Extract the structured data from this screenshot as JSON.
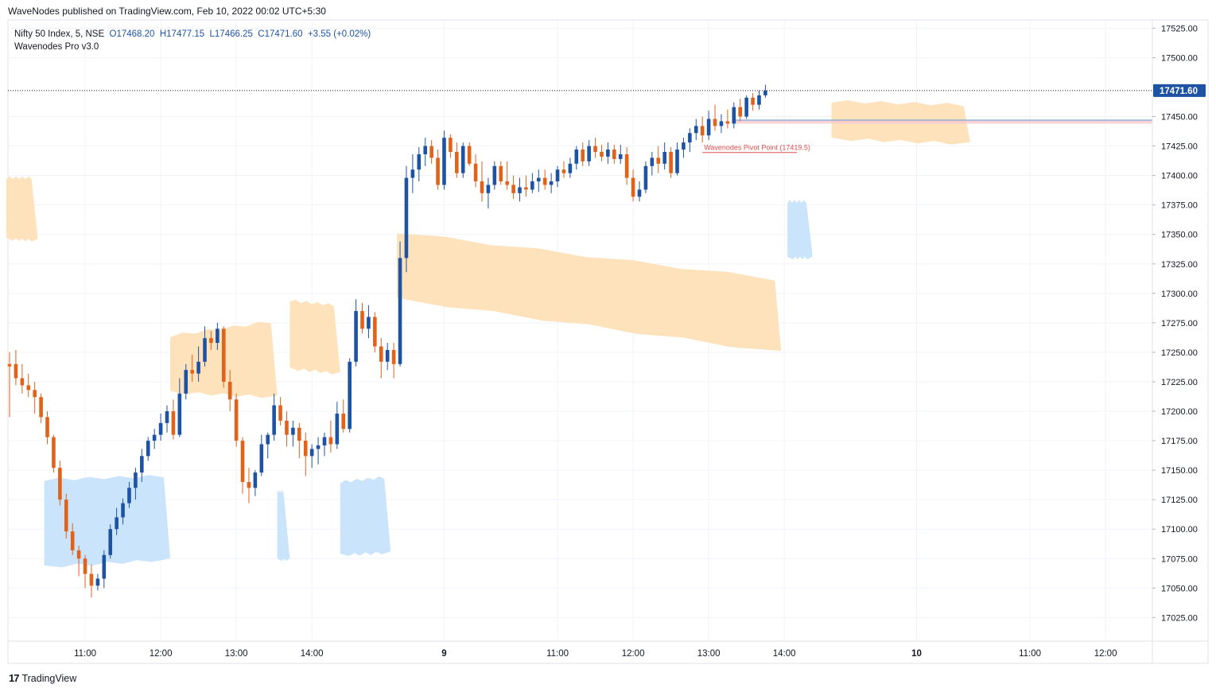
{
  "header": {
    "published": "WaveNodes published on TradingView.com, Feb 10, 2022 00:02 UTC+5:30"
  },
  "legend": {
    "symbol": "Nifty 50 Index, 5, NSE",
    "open": "O17468.20",
    "high": "H17477.15",
    "low": "L17466.25",
    "close": "C17471.60",
    "change": "+3.55 (+0.02%)",
    "indicator": "Wavenodes Pro v3.0"
  },
  "footer": {
    "logo_text": "TradingView",
    "logo_mark": "17"
  },
  "colors": {
    "up": "#1e53a4",
    "down": "#e0621b",
    "supply_zone": "#fde0b8",
    "demand_zone": "#c7e3fb",
    "pivot_line": "#e05050",
    "grid": "#f0f3fa",
    "price_tag": "#1e53a4"
  },
  "chart_data": {
    "type": "candlestick",
    "symbol": "Nifty 50 Index",
    "timeframe": "5",
    "exchange": "NSE",
    "last_price": "17471.60",
    "ylim": [
      17005,
      17532
    ],
    "y_ticks": [
      "17525.00",
      "17500.00",
      "17450.00",
      "17425.00",
      "17400.00",
      "17375.00",
      "17350.00",
      "17325.00",
      "17300.00",
      "17275.00",
      "17250.00",
      "17225.00",
      "17200.00",
      "17175.00",
      "17150.00",
      "17125.00",
      "17100.00",
      "17075.00",
      "17050.00",
      "17025.00"
    ],
    "x_ticks": [
      {
        "label": "11:00",
        "bar": 12
      },
      {
        "label": "12:00",
        "bar": 24
      },
      {
        "label": "13:00",
        "bar": 36
      },
      {
        "label": "14:00",
        "bar": 48
      },
      {
        "label": "9",
        "bar": 69
      },
      {
        "label": "11:00",
        "bar": 87
      },
      {
        "label": "12:00",
        "bar": 99
      },
      {
        "label": "13:00",
        "bar": 111
      },
      {
        "label": "14:00",
        "bar": 123
      },
      {
        "label": "10",
        "bar": 144
      },
      {
        "label": "11:00",
        "bar": 162
      },
      {
        "label": "12:00",
        "bar": 174
      }
    ],
    "pivot_label": "Wavenodes Pivot Point (17419.5)",
    "pivot_value": 17419.5,
    "ohlc": [
      [
        17240,
        17250,
        17195,
        17238
      ],
      [
        17240,
        17252,
        17222,
        17228
      ],
      [
        17228,
        17240,
        17215,
        17222
      ],
      [
        17222,
        17232,
        17212,
        17218
      ],
      [
        17218,
        17225,
        17198,
        17212
      ],
      [
        17212,
        17215,
        17190,
        17195
      ],
      [
        17195,
        17200,
        17172,
        17178
      ],
      [
        17178,
        17180,
        17148,
        17152
      ],
      [
        17152,
        17158,
        17120,
        17125
      ],
      [
        17125,
        17130,
        17092,
        17098
      ],
      [
        17098,
        17105,
        17078,
        17082
      ],
      [
        17082,
        17086,
        17060,
        17075
      ],
      [
        17075,
        17078,
        17050,
        17062
      ],
      [
        17062,
        17070,
        17042,
        17052
      ],
      [
        17052,
        17062,
        17048,
        17058
      ],
      [
        17058,
        17082,
        17050,
        17078
      ],
      [
        17078,
        17104,
        17075,
        17100
      ],
      [
        17100,
        17118,
        17095,
        17110
      ],
      [
        17110,
        17126,
        17104,
        17122
      ],
      [
        17122,
        17140,
        17118,
        17135
      ],
      [
        17135,
        17152,
        17125,
        17148
      ],
      [
        17148,
        17168,
        17140,
        17162
      ],
      [
        17162,
        17178,
        17158,
        17175
      ],
      [
        17175,
        17185,
        17168,
        17180
      ],
      [
        17180,
        17198,
        17175,
        17190
      ],
      [
        17190,
        17205,
        17182,
        17200
      ],
      [
        17200,
        17210,
        17176,
        17180
      ],
      [
        17180,
        17228,
        17178,
        17215
      ],
      [
        17215,
        17240,
        17210,
        17235
      ],
      [
        17235,
        17248,
        17225,
        17232
      ],
      [
        17232,
        17255,
        17225,
        17242
      ],
      [
        17242,
        17272,
        17238,
        17262
      ],
      [
        17262,
        17268,
        17252,
        17258
      ],
      [
        17258,
        17275,
        17252,
        17270
      ],
      [
        17270,
        17272,
        17220,
        17225
      ],
      [
        17225,
        17235,
        17200,
        17210
      ],
      [
        17210,
        17215,
        17170,
        17175
      ],
      [
        17175,
        17178,
        17130,
        17140
      ],
      [
        17140,
        17152,
        17122,
        17135
      ],
      [
        17135,
        17150,
        17128,
        17148
      ],
      [
        17148,
        17180,
        17145,
        17172
      ],
      [
        17172,
        17182,
        17160,
        17180
      ],
      [
        17180,
        17215,
        17175,
        17205
      ],
      [
        17205,
        17212,
        17188,
        17192
      ],
      [
        17192,
        17200,
        17170,
        17180
      ],
      [
        17180,
        17192,
        17170,
        17186
      ],
      [
        17186,
        17190,
        17160,
        17175
      ],
      [
        17175,
        17182,
        17145,
        17162
      ],
      [
        17162,
        17172,
        17152,
        17168
      ],
      [
        17168,
        17178,
        17155,
        17171
      ],
      [
        17171,
        17182,
        17162,
        17178
      ],
      [
        17178,
        17192,
        17165,
        17172
      ],
      [
        17172,
        17208,
        17168,
        17198
      ],
      [
        17198,
        17210,
        17182,
        17185
      ],
      [
        17185,
        17245,
        17182,
        17242
      ],
      [
        17242,
        17295,
        17238,
        17285
      ],
      [
        17285,
        17292,
        17266,
        17270
      ],
      [
        17270,
        17290,
        17262,
        17280
      ],
      [
        17280,
        17284,
        17250,
        17255
      ],
      [
        17255,
        17262,
        17228,
        17242
      ],
      [
        17242,
        17258,
        17235,
        17252
      ],
      [
        17252,
        17258,
        17228,
        17240
      ],
      [
        17240,
        17344,
        17238,
        17330
      ],
      [
        17330,
        17408,
        17318,
        17398
      ],
      [
        17398,
        17418,
        17385,
        17405
      ],
      [
        17405,
        17424,
        17395,
        17418
      ],
      [
        17418,
        17432,
        17408,
        17425
      ],
      [
        17425,
        17430,
        17410,
        17415
      ],
      [
        17415,
        17422,
        17388,
        17392
      ],
      [
        17392,
        17438,
        17388,
        17432
      ],
      [
        17432,
        17435,
        17415,
        17420
      ],
      [
        17420,
        17428,
        17398,
        17402
      ],
      [
        17402,
        17428,
        17398,
        17425
      ],
      [
        17425,
        17428,
        17408,
        17410
      ],
      [
        17410,
        17418,
        17390,
        17395
      ],
      [
        17395,
        17412,
        17378,
        17385
      ],
      [
        17385,
        17398,
        17372,
        17392
      ],
      [
        17392,
        17412,
        17388,
        17408
      ],
      [
        17408,
        17412,
        17392,
        17395
      ],
      [
        17395,
        17412,
        17388,
        17392
      ],
      [
        17392,
        17400,
        17380,
        17385
      ],
      [
        17385,
        17398,
        17378,
        17390
      ],
      [
        17390,
        17400,
        17382,
        17388
      ],
      [
        17388,
        17402,
        17385,
        17395
      ],
      [
        17395,
        17405,
        17386,
        17398
      ],
      [
        17398,
        17405,
        17388,
        17392
      ],
      [
        17392,
        17402,
        17385,
        17395
      ],
      [
        17395,
        17408,
        17390,
        17405
      ],
      [
        17405,
        17412,
        17398,
        17402
      ],
      [
        17402,
        17415,
        17398,
        17410
      ],
      [
        17410,
        17425,
        17405,
        17422
      ],
      [
        17422,
        17428,
        17408,
        17412
      ],
      [
        17412,
        17430,
        17408,
        17425
      ],
      [
        17425,
        17432,
        17415,
        17420
      ],
      [
        17420,
        17426,
        17412,
        17416
      ],
      [
        17416,
        17428,
        17410,
        17422
      ],
      [
        17422,
        17426,
        17410,
        17414
      ],
      [
        17414,
        17426,
        17410,
        17418
      ],
      [
        17418,
        17424,
        17392,
        17398
      ],
      [
        17398,
        17405,
        17378,
        17382
      ],
      [
        17382,
        17395,
        17378,
        17388
      ],
      [
        17388,
        17412,
        17385,
        17408
      ],
      [
        17408,
        17420,
        17400,
        17415
      ],
      [
        17415,
        17425,
        17402,
        17410
      ],
      [
        17410,
        17428,
        17405,
        17420
      ],
      [
        17420,
        17424,
        17398,
        17402
      ],
      [
        17402,
        17428,
        17400,
        17422
      ],
      [
        17422,
        17432,
        17415,
        17428
      ],
      [
        17428,
        17440,
        17420,
        17436
      ],
      [
        17436,
        17448,
        17430,
        17442
      ],
      [
        17442,
        17450,
        17428,
        17434
      ],
      [
        17434,
        17455,
        17430,
        17448
      ],
      [
        17448,
        17460,
        17438,
        17442
      ],
      [
        17442,
        17452,
        17436,
        17446
      ],
      [
        17446,
        17456,
        17440,
        17444
      ],
      [
        17444,
        17462,
        17440,
        17458
      ],
      [
        17458,
        17465,
        17446,
        17450
      ],
      [
        17450,
        17468,
        17448,
        17466
      ],
      [
        17466,
        17470,
        17455,
        17460
      ],
      [
        17460,
        17472,
        17456,
        17468
      ],
      [
        17468,
        17477,
        17466,
        17472
      ]
    ],
    "supply_zones": [
      {
        "x0": 0,
        "x1": 4,
        "top": [
          17398,
          17398
        ],
        "bottom": [
          17346,
          17345
        ]
      },
      {
        "x0": 26,
        "x1": 42,
        "top": [
          17264,
          17276
        ],
        "bottom": [
          17216,
          17212
        ]
      },
      {
        "x0": 45,
        "x1": 52,
        "top": [
          17294,
          17290
        ],
        "bottom": [
          17236,
          17232
        ]
      },
      {
        "x0": 62,
        "x1": 122,
        "top": [
          17352,
          17312
        ],
        "bottom": [
          17295,
          17250
        ]
      },
      {
        "x0": 131,
        "x1": 152,
        "top": [
          17463,
          17460
        ],
        "bottom": [
          17431,
          17427
        ]
      }
    ],
    "demand_zones": [
      {
        "x0": 6,
        "x1": 25,
        "top": [
          17142,
          17145
        ],
        "bottom": [
          17068,
          17074
        ]
      },
      {
        "x0": 43,
        "x1": 44,
        "top": [
          17132,
          17132
        ],
        "bottom": [
          17074,
          17074
        ]
      },
      {
        "x0": 53,
        "x1": 60,
        "top": [
          17140,
          17144
        ],
        "bottom": [
          17078,
          17080
        ]
      },
      {
        "x0": 124,
        "x1": 127,
        "top": [
          17378,
          17378
        ],
        "bottom": [
          17330,
          17330
        ]
      }
    ]
  }
}
